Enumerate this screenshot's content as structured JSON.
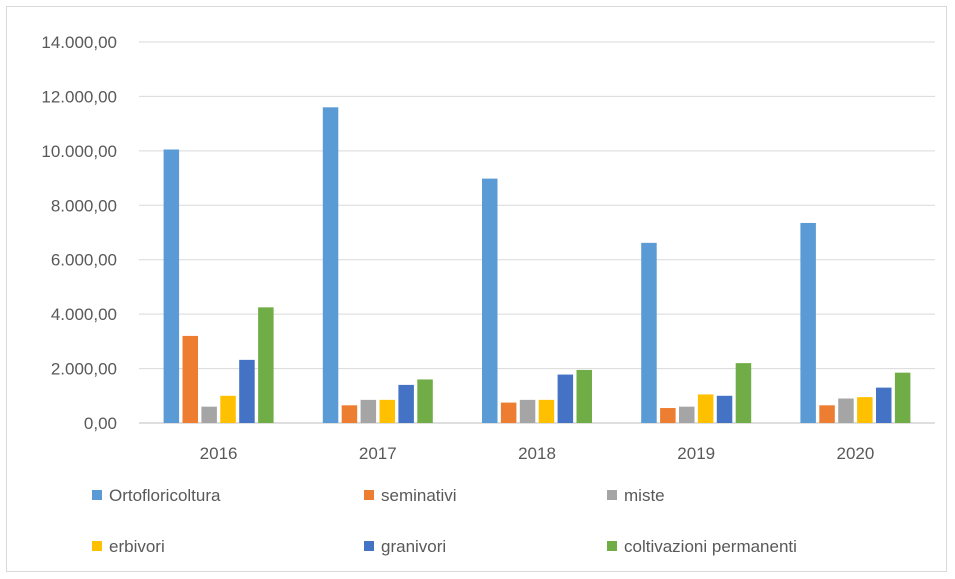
{
  "chart_data": {
    "type": "bar",
    "categories": [
      "2016",
      "2017",
      "2018",
      "2019",
      "2020"
    ],
    "series": [
      {
        "name": "Ortofloricoltura",
        "color": "#5b9bd5",
        "values": [
          10050,
          11600,
          8980,
          6620,
          7350
        ]
      },
      {
        "name": "seminativi",
        "color": "#ed7d31",
        "values": [
          3200,
          650,
          750,
          550,
          650
        ]
      },
      {
        "name": "miste",
        "color": "#a5a5a5",
        "values": [
          600,
          850,
          850,
          600,
          900
        ]
      },
      {
        "name": "erbivori",
        "color": "#ffc000",
        "values": [
          1000,
          850,
          850,
          1050,
          950
        ]
      },
      {
        "name": "granivori",
        "color": "#4472c4",
        "values": [
          2320,
          1400,
          1780,
          1000,
          1300
        ]
      },
      {
        "name": "coltivazioni permanenti",
        "color": "#70ad47",
        "values": [
          4250,
          1600,
          1950,
          2200,
          1850
        ]
      }
    ],
    "y_ticks": [
      "0,00",
      "2.000,00",
      "4.000,00",
      "6.000,00",
      "8.000,00",
      "10.000,00",
      "12.000,00",
      "14.000,00"
    ],
    "ylim": [
      0,
      14000
    ],
    "grid": true,
    "legend": "bottom",
    "title": "",
    "xlabel": "",
    "ylabel": ""
  }
}
